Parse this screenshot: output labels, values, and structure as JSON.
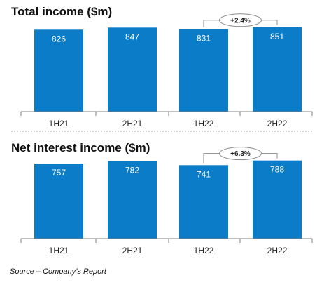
{
  "colors": {
    "bar": "#0a7cc8",
    "axis": "#7f7f7f",
    "divider": "#a6a6a6",
    "bubble_stroke": "#8c8c8c"
  },
  "chart_data": [
    {
      "type": "bar",
      "title": "Total income ($m)",
      "categories": [
        "1H21",
        "2H21",
        "1H22",
        "2H22"
      ],
      "values": [
        826,
        847,
        831,
        851
      ],
      "value_labels": [
        "826",
        "847",
        "831",
        "851"
      ],
      "ylim": [
        0,
        900
      ],
      "grid": false,
      "annotation": {
        "label": "+2.4%",
        "from_index": 2,
        "to_index": 3
      }
    },
    {
      "type": "bar",
      "title": "Net interest income ($m)",
      "categories": [
        "1H21",
        "2H21",
        "1H22",
        "2H22"
      ],
      "values": [
        757,
        782,
        741,
        788
      ],
      "value_labels": [
        "757",
        "782",
        "741",
        "788"
      ],
      "ylim": [
        0,
        900
      ],
      "grid": false,
      "annotation": {
        "label": "+6.3%",
        "from_index": 2,
        "to_index": 3
      }
    }
  ],
  "source": "Source – Company’s Report"
}
